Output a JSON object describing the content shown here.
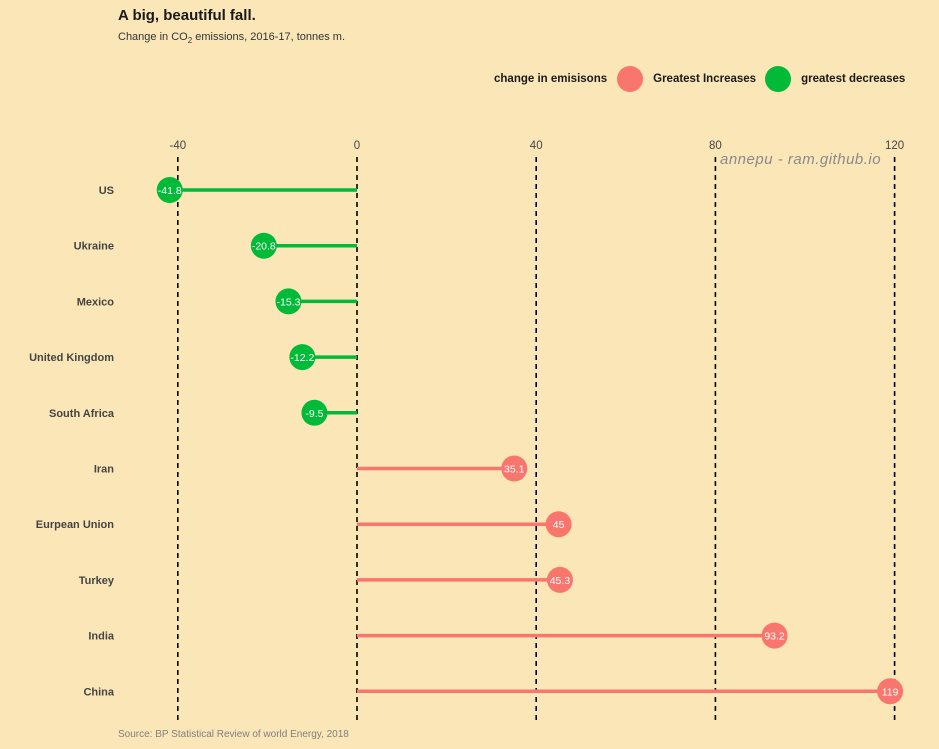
{
  "chart_data": {
    "type": "lollipop",
    "title": "A big, beautiful fall.",
    "subtitle_pre": "Change in CO",
    "subtitle_sub": "2",
    "subtitle_post": " emissions, 2016-17, tonnes m.",
    "xlim": [
      -42,
      121
    ],
    "x_ticks": [
      -40,
      0,
      40,
      80,
      120
    ],
    "grid": "dashed vertical lines at ticks",
    "legend": {
      "title": "change in emisisons",
      "placement": "top-right",
      "entries": [
        {
          "label": "Greatest Increases",
          "color": "#f8766d"
        },
        {
          "label": "greatest decreases",
          "color": "#00ba38"
        }
      ]
    },
    "points": [
      {
        "country": "US",
        "value": -41.8,
        "label": "-41.8",
        "group": "greatest decreases"
      },
      {
        "country": "Ukraine",
        "value": -20.8,
        "label": "-20.8",
        "group": "greatest decreases"
      },
      {
        "country": "Mexico",
        "value": -15.3,
        "label": "-15.3",
        "group": "greatest decreases"
      },
      {
        "country": "United Kingdom",
        "value": -12.2,
        "label": "-12.2",
        "group": "greatest decreases"
      },
      {
        "country": "South Africa",
        "value": -9.5,
        "label": "-9.5",
        "group": "greatest decreases"
      },
      {
        "country": "Iran",
        "value": 35.1,
        "label": "35.1",
        "group": "Greatest Increases"
      },
      {
        "country": "Eurpean Union",
        "value": 45,
        "label": "45",
        "group": "Greatest Increases"
      },
      {
        "country": "Turkey",
        "value": 45.3,
        "label": "45.3",
        "group": "Greatest Increases"
      },
      {
        "country": "India",
        "value": 93.2,
        "label": "93.2",
        "group": "Greatest Increases"
      },
      {
        "country": "China",
        "value": 119,
        "label": "119",
        "group": "Greatest Increases"
      }
    ],
    "watermark": "annepu - ram.github.io",
    "caption": "Source: BP Statistical Review of world Energy, 2018"
  }
}
